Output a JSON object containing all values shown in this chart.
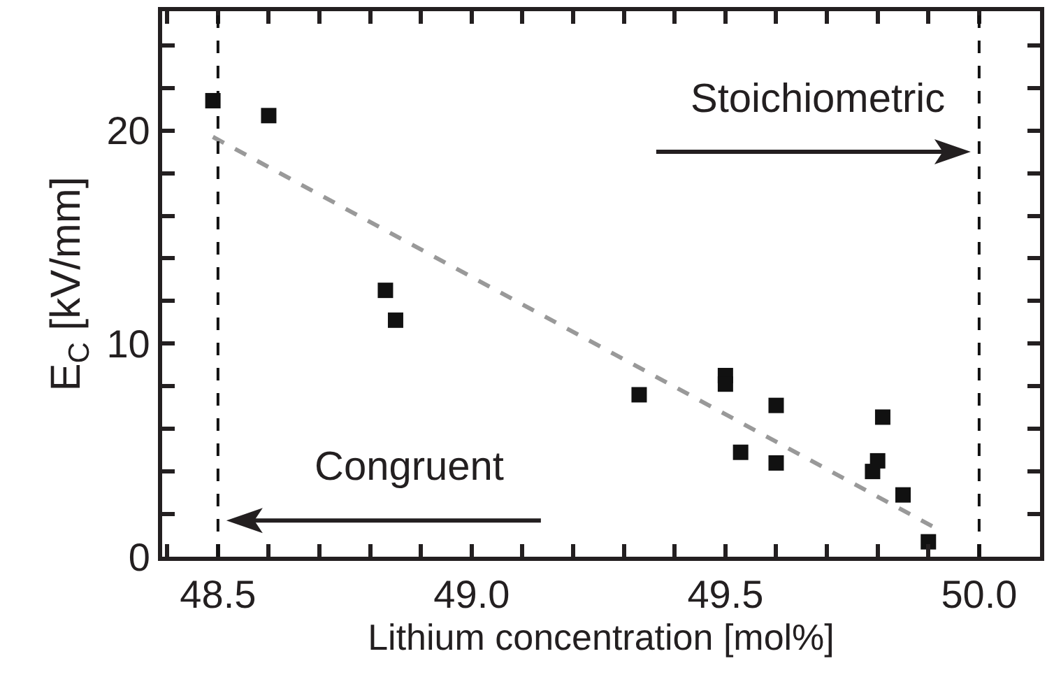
{
  "chart_data": {
    "type": "scatter",
    "xlabel": "Lithium concentration [mol%]",
    "ylabel": "E$_{C}$ [kV/mm]",
    "grid": false,
    "xlim": [
      48.39,
      50.12
    ],
    "ylim": [
      0,
      25.6
    ],
    "xticks": [
      {
        "value": 48.4,
        "label": null
      },
      48.5,
      {
        "value": 48.6,
        "label": null
      },
      {
        "value": 48.7,
        "label": null
      },
      {
        "value": 48.8,
        "label": null
      },
      {
        "value": 48.9,
        "label": null
      },
      {
        "value": 49,
        "label": "49.0"
      },
      {
        "value": 49.1,
        "label": null
      },
      {
        "value": 49.2,
        "label": null
      },
      {
        "value": 49.3,
        "label": null
      },
      {
        "value": 49.4,
        "label": null
      },
      49.5,
      {
        "value": 49.6,
        "label": null
      },
      {
        "value": 49.7,
        "label": null
      },
      {
        "value": 49.8,
        "label": null
      },
      {
        "value": 49.9,
        "label": null
      },
      {
        "value": 50,
        "label": "50.0"
      }
    ],
    "yticks": [
      0,
      {
        "value": 2,
        "label": null
      },
      {
        "value": 4,
        "label": null
      },
      {
        "value": 6,
        "label": null
      },
      {
        "value": 8,
        "label": null
      },
      10,
      {
        "value": 12,
        "label": null
      },
      {
        "value": 14,
        "label": null
      },
      {
        "value": 16,
        "label": null
      },
      {
        "value": 18,
        "label": null
      },
      20,
      {
        "value": 22,
        "label": null
      },
      {
        "value": 24,
        "label": null
      }
    ],
    "series": [
      {
        "color": "#111111",
        "marker": "square",
        "x": [
          48.49,
          48.6,
          48.83,
          48.85,
          49.33,
          49.5,
          49.5,
          49.53,
          49.6,
          49.6,
          49.81,
          49.8,
          49.79,
          49.85,
          49.9
        ],
        "values": [
          21.4,
          20.7,
          12.5,
          11.1,
          7.6,
          8.5,
          8.1,
          4.9,
          7.1,
          4.4,
          6.55,
          4.5,
          4.0,
          2.9,
          0.7
        ]
      },
      {
        "type": "line",
        "color": "#999999",
        "line_style": "dashed",
        "x": [
          48.49,
          49.91
        ],
        "values": [
          19.7,
          1.4
        ]
      }
    ],
    "ref_lines": [
      {
        "axis": "x",
        "value": 48.5,
        "color": "#111111",
        "line_style": "dashed"
      },
      {
        "axis": "x",
        "value": 50.0,
        "color": "#111111",
        "line_style": "dashed"
      }
    ],
    "annotations": [
      {
        "text": "Stoichiometric",
        "x": 50.0,
        "y": 19.0
      },
      {
        "text": "Congruent",
        "x": 48.5,
        "y": 1.7
      }
    ]
  }
}
